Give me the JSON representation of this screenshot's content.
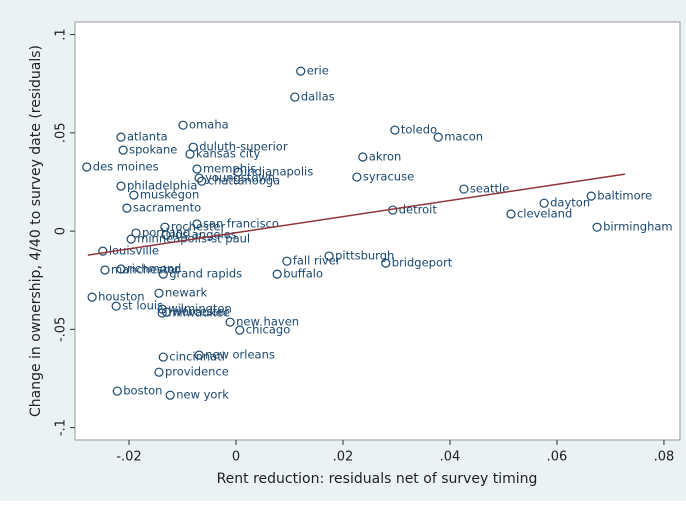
{
  "chart_data": {
    "type": "scatter",
    "x_label": "Rent reduction: residuals net of survey timing",
    "y_label": "Change in ownership, 4/40 to survey date (residuals)",
    "color": "#1a476f",
    "labels": [
      "erie",
      "dallas",
      "omaha",
      "atlanta",
      "toledo",
      "macon",
      "duluth-superior",
      "spokane",
      "kansas city",
      "akron",
      "des moines",
      "memphis",
      "indianapolis",
      "youngstown",
      "chattanooga",
      "syracuse",
      "philadelphia",
      "seattle",
      "muskegon",
      "baltimore",
      "dayton",
      "sacramento",
      "detroit",
      "cleveland",
      "san francisco",
      "rochester",
      "birmingham",
      "portland",
      "los angeles",
      "minneapolis-st paul",
      "louisville",
      "pittsburgh",
      "fall river",
      "bridgeport",
      "richmond",
      "manchester",
      "grand rapids",
      "buffalo",
      "newark",
      "houston",
      "st louis",
      "wilmington",
      "milwaukee",
      "worcester",
      "new haven",
      "chicago",
      "cincinnati",
      "new orleans",
      "providence",
      "boston",
      "new york"
    ],
    "x": [
      0.0121,
      0.011,
      -0.0099,
      -0.0215,
      0.0297,
      0.0378,
      -0.008,
      -0.0211,
      -0.0086,
      0.0237,
      -0.0279,
      -0.0073,
      0.0004,
      -0.0069,
      -0.0064,
      0.0226,
      -0.0215,
      0.0426,
      -0.0191,
      0.0664,
      0.0576,
      -0.0204,
      0.0293,
      0.0514,
      -0.0073,
      -0.0133,
      0.0675,
      -0.0187,
      -0.0131,
      -0.0196,
      -0.0249,
      0.0174,
      0.0095,
      0.028,
      -0.0215,
      -0.0245,
      -0.0136,
      0.0077,
      -0.0144,
      -0.0269,
      -0.0224,
      -0.0138,
      -0.0138,
      -0.013,
      -0.0011,
      0.0007,
      -0.0136,
      -0.0069,
      -0.0144,
      -0.0222,
      -0.0123
    ],
    "values": [
      0.0814,
      0.0682,
      0.0539,
      0.0478,
      0.0514,
      0.0478,
      0.0427,
      0.0412,
      0.0392,
      0.0377,
      0.0326,
      0.0316,
      0.03,
      0.027,
      0.0254,
      0.0275,
      0.0229,
      0.0214,
      0.0183,
      0.0178,
      0.0142,
      0.0117,
      0.0107,
      0.0087,
      0.0036,
      0.002,
      0.002,
      -0.001,
      -0.002,
      -0.0041,
      -0.0102,
      -0.0127,
      -0.0153,
      -0.0163,
      -0.0193,
      -0.0198,
      -0.0219,
      -0.0219,
      -0.0316,
      -0.0336,
      -0.0382,
      -0.0397,
      -0.0417,
      -0.0412,
      -0.0463,
      -0.0504,
      -0.0641,
      -0.0631,
      -0.0718,
      -0.0814,
      -0.0835
    ],
    "fit_line": {
      "x": [
        -0.0277,
        0.0727
      ],
      "values": [
        -0.0122,
        0.029
      ],
      "color": "#90353b"
    },
    "xlim": [
      -0.0301,
      0.083
    ],
    "ylim": [
      -0.1063,
      0.1064
    ],
    "xticks": [
      {
        "value": -0.02,
        "label": "-.02"
      },
      0,
      {
        "value": 0.02,
        "label": ".02"
      },
      {
        "value": 0.04,
        "label": ".04"
      },
      {
        "value": 0.06,
        "label": ".06"
      },
      {
        "value": 0.08,
        "label": ".08"
      }
    ],
    "yticks": [
      {
        "value": -0.1,
        "label": "-.1"
      },
      {
        "value": -0.05,
        "label": "-.05"
      },
      0,
      {
        "value": 0.05,
        "label": ".05"
      },
      {
        "value": 0.1,
        "label": ".1"
      }
    ]
  }
}
